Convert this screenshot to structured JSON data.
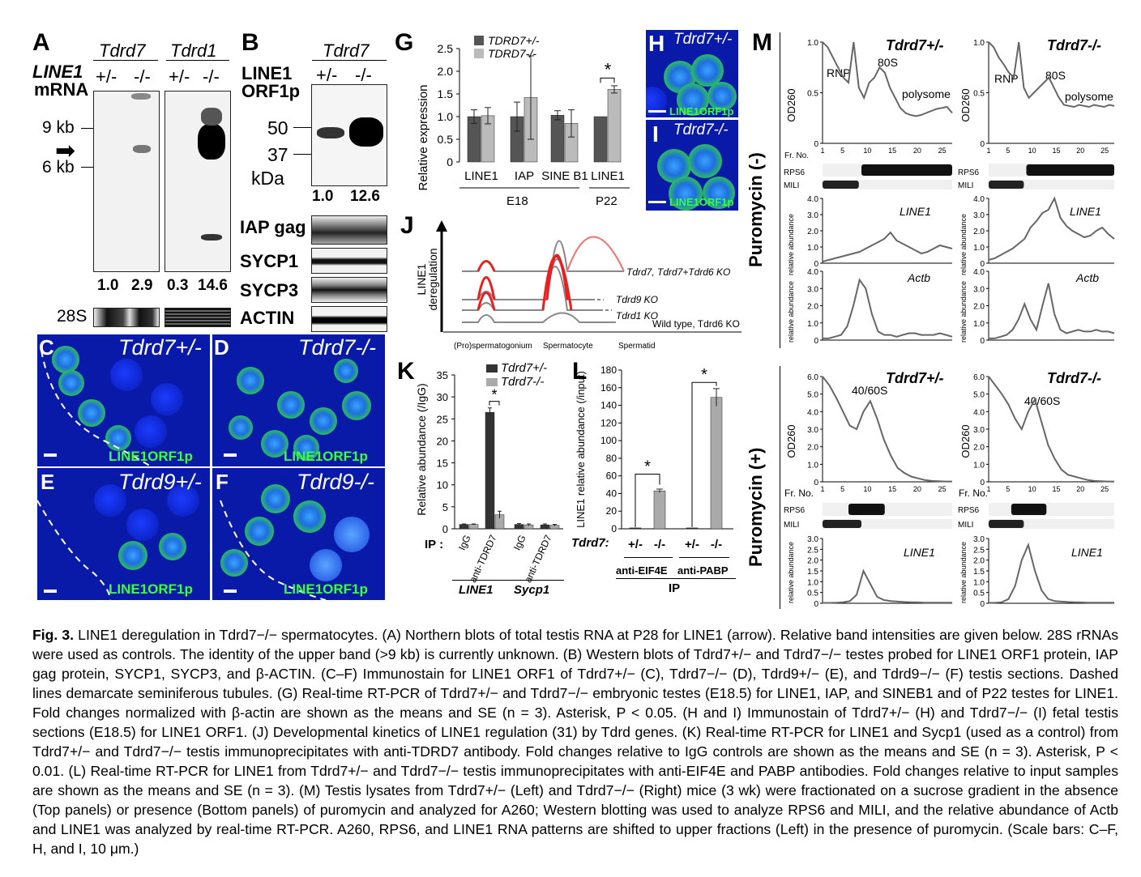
{
  "panelA": {
    "letter": "A",
    "gene_left": "Tdrd7",
    "gene_right": "Tdrd1",
    "row_label_1": "LINE1",
    "row_label_2": "mRNA",
    "geno": [
      "+/-",
      "-/-",
      "+/-",
      "-/-"
    ],
    "marker_9": "9 kb",
    "marker_6": "6 kb",
    "intensities": [
      "1.0",
      "2.9",
      "0.3",
      "14.6"
    ],
    "control": "28S"
  },
  "panelB": {
    "letter": "B",
    "gene": "Tdrd7",
    "row_label_1": "LINE1",
    "row_label_2": "ORF1p",
    "geno": [
      "+/-",
      "-/-"
    ],
    "mw_50": "50",
    "mw_37": "37",
    "kda": "kDa",
    "intensities": [
      "1.0",
      "12.6"
    ],
    "blots": [
      "IAP gag",
      "SYCP1",
      "SYCP3",
      "ACTIN"
    ]
  },
  "panelG": {
    "letter": "G",
    "legend": [
      "TDRD7+/-",
      "TDRD7-/-"
    ],
    "ylabel": "Relative expression",
    "group_e18": "E18",
    "group_p22": "P22",
    "sig": "*"
  },
  "panelH": {
    "letter": "H",
    "label": "Tdrd7+/-",
    "stain": "LINE1ORF1p"
  },
  "panelI": {
    "letter": "I",
    "label": "Tdrd7-/-",
    "stain": "LINE1ORF1p"
  },
  "panelJ": {
    "letter": "J",
    "ylabel_1": "LINE1",
    "ylabel_2": "deregulation",
    "curve_labels": [
      "Tdrd7, Tdrd7+Tdrd6 KO",
      "Tdrd9 KO",
      "Tdrd1 KO",
      "Wild type, Tdrd6 KO"
    ],
    "stages": [
      "(Pro)spermatogonium",
      "Spermatocyte",
      "Spermatid"
    ]
  },
  "panelC": {
    "letter": "C",
    "label": "Tdrd7+/-",
    "stain": "LINE1ORF1p"
  },
  "panelD": {
    "letter": "D",
    "label": "Tdrd7-/-",
    "stain": "LINE1ORF1p"
  },
  "panelE": {
    "letter": "E",
    "label": "Tdrd9+/-",
    "stain": "LINE1ORF1p"
  },
  "panelF": {
    "letter": "F",
    "label": "Tdrd9-/-",
    "stain": "LINE1ORF1p"
  },
  "panelK": {
    "letter": "K",
    "legend": [
      "Tdrd7+/-",
      "Tdrd7-/-"
    ],
    "ylabel": "Relative abundance (/IgG)",
    "ip_label": "IP :",
    "genes": [
      "LINE1",
      "Sycp1"
    ],
    "sig": "*"
  },
  "panelL": {
    "letter": "L",
    "ylabel": "LINE1 relative abundance (/input)",
    "geno_label": "Tdrd7:",
    "ab_1": "anti-EIF4E",
    "ab_2": "anti-PABP",
    "ip": "IP",
    "sig": "*"
  },
  "panelM": {
    "letter": "M",
    "cond_minus": "Puromycin (-)",
    "cond_plus": "Puromycin (+)",
    "het": "Tdrd7+/-",
    "ko": "Tdrd7-/-",
    "od": "OD260",
    "fr": "Fr. No.",
    "rnp": "RNP",
    "s80": "80S",
    "polysome": "polysome",
    "s4060": "40/60S",
    "rps6": "RPS6",
    "mili": "MILI",
    "line1": "LINE1",
    "actb": "Actb",
    "relab": "relative abundance"
  },
  "chart_data": [
    {
      "panel": "G",
      "type": "bar",
      "ylabel": "Relative expression",
      "ylim": [
        0,
        2.5
      ],
      "yticks": [
        "0",
        "0.5",
        "1.0",
        "1.5",
        "2.0",
        "2.5"
      ],
      "categories": [
        "LINE1",
        "IAP",
        "SINE B1",
        "LINE1"
      ],
      "groups": [
        "E18",
        "E18",
        "E18",
        "P22"
      ],
      "series": [
        {
          "name": "TDRD7+/-",
          "values": [
            1.0,
            1.0,
            1.03,
            1.0
          ],
          "errors": [
            0.15,
            0.32,
            0.1,
            0.0
          ],
          "color": "#555555"
        },
        {
          "name": "TDRD7-/-",
          "values": [
            1.02,
            1.42,
            0.85,
            1.6
          ],
          "errors": [
            0.18,
            0.92,
            0.3,
            0.08
          ],
          "color": "#bbbbbb"
        }
      ]
    },
    {
      "panel": "K",
      "type": "bar",
      "ylabel": "Relative abundance (/IgG)",
      "ylim": [
        0,
        35
      ],
      "yticks": [
        "0",
        "5",
        "10",
        "15",
        "20",
        "25",
        "30",
        "35"
      ],
      "categories": [
        "IgG",
        "anti-TDRD7",
        "IgG",
        "anti-TDRD7"
      ],
      "groups": [
        "LINE1",
        "LINE1",
        "Sycp1",
        "Sycp1"
      ],
      "series": [
        {
          "name": "Tdrd7+/-",
          "values": [
            1.0,
            26.5,
            1.0,
            0.9
          ],
          "errors": [
            0.1,
            1.0,
            0.2,
            0.2
          ],
          "color": "#333333"
        },
        {
          "name": "Tdrd7-/-",
          "values": [
            1.0,
            3.2,
            0.9,
            0.8
          ],
          "errors": [
            0.1,
            0.8,
            0.2,
            0.2
          ],
          "color": "#aaaaaa"
        }
      ]
    },
    {
      "panel": "L",
      "type": "bar",
      "ylabel": "LINE1 relative abundance (/input)",
      "ylim": [
        0,
        180
      ],
      "yticks": [
        "0",
        "20",
        "40",
        "60",
        "80",
        "100",
        "120",
        "140",
        "160",
        "180"
      ],
      "categories": [
        "+/-",
        "-/-",
        "+/-",
        "-/-"
      ],
      "groups": [
        "anti-EIF4E",
        "anti-EIF4E",
        "anti-PABP",
        "anti-PABP"
      ],
      "values": [
        1.0,
        43,
        1.0,
        149
      ],
      "errors": [
        0,
        2,
        0,
        10
      ]
    },
    {
      "panel": "M-top",
      "type": "line",
      "fractions_x": [
        "1",
        "5",
        "10",
        "15",
        "20",
        "25"
      ],
      "od_yticks": [
        "0",
        "0.5",
        "1.0"
      ],
      "line1_yticks": [
        "0",
        "1.0",
        "2.0",
        "3.0",
        "4.0"
      ],
      "actb_yticks": [
        "0",
        "1.0",
        "2.0",
        "3.0",
        "4.0"
      ],
      "series": [
        {
          "name": "Tdrd7+/- OD260",
          "values": [
            1.0,
            0.95,
            0.85,
            0.75,
            0.65,
            0.6,
            1.0,
            0.55,
            0.45,
            0.6,
            0.65,
            0.75,
            0.7,
            0.55,
            0.45,
            0.35,
            0.3,
            0.28,
            0.27,
            0.28,
            0.3,
            0.32,
            0.34,
            0.35,
            0.36,
            0.3
          ]
        },
        {
          "name": "Tdrd7-/- OD260",
          "values": [
            1.0,
            0.95,
            0.85,
            0.78,
            0.7,
            0.65,
            1.0,
            0.55,
            0.45,
            0.5,
            0.55,
            0.6,
            0.65,
            0.55,
            0.45,
            0.38,
            0.37,
            0.36,
            0.38,
            0.37,
            0.36,
            0.38,
            0.37,
            0.36,
            0.38,
            0.37
          ]
        },
        {
          "name": "Tdrd7+/- LINE1",
          "values": [
            0.1,
            0.2,
            0.3,
            0.4,
            0.5,
            0.6,
            0.7,
            0.9,
            1.1,
            1.3,
            1.5,
            1.9,
            1.4,
            1.2,
            1.0,
            0.8,
            0.6,
            0.7,
            0.9,
            1.1,
            1.0,
            0.9
          ]
        },
        {
          "name": "Tdrd7-/- LINE1",
          "values": [
            0.2,
            0.3,
            0.5,
            0.7,
            0.9,
            1.2,
            1.5,
            2.2,
            2.6,
            3.1,
            3.3,
            4.0,
            2.8,
            2.3,
            2.0,
            1.8,
            1.6,
            1.7,
            2.0,
            2.2,
            1.8,
            1.5
          ]
        },
        {
          "name": "Tdrd7+/- Actb",
          "values": [
            0.1,
            0.1,
            0.2,
            0.3,
            0.8,
            2.0,
            3.5,
            3.0,
            1.5,
            0.5,
            0.3,
            0.3,
            0.2,
            0.3,
            0.4,
            0.4,
            0.3,
            0.3,
            0.3,
            0.4,
            0.3,
            0.2
          ]
        },
        {
          "name": "Tdrd7-/- Actb",
          "values": [
            0.1,
            0.1,
            0.2,
            0.3,
            0.6,
            1.2,
            2.1,
            1.2,
            0.6,
            2.0,
            3.3,
            1.5,
            0.6,
            0.4,
            0.5,
            0.6,
            0.5,
            0.5,
            0.6,
            0.5,
            0.5,
            0.4
          ]
        }
      ]
    },
    {
      "panel": "M-bottom",
      "type": "line",
      "fractions_x": [
        "1",
        "5",
        "10",
        "15",
        "20",
        "25"
      ],
      "od_yticks": [
        "0",
        "1.0",
        "2.0",
        "3.0",
        "4.0",
        "5.0",
        "6.0"
      ],
      "line1_yticks_left": [
        "0",
        "0.5",
        "1.0",
        "1.5",
        "2.0",
        "2.5",
        "3.0"
      ],
      "line1_yticks_right": [
        "0",
        "0.5",
        "1.0",
        "1.5",
        "2.0",
        "2.5",
        "3.0"
      ],
      "series": [
        {
          "name": "Tdrd7+/- OD260",
          "values": [
            6.0,
            5.5,
            4.8,
            4.0,
            3.2,
            3.0,
            4.0,
            4.6,
            3.6,
            2.4,
            1.5,
            0.8,
            0.5,
            0.3,
            0.2,
            0.1,
            0.05,
            0.03,
            0.02,
            0.02
          ]
        },
        {
          "name": "Tdrd7-/- OD260",
          "values": [
            6.0,
            5.5,
            5.0,
            4.4,
            3.6,
            3.0,
            4.0,
            4.7,
            3.4,
            2.1,
            1.3,
            0.7,
            0.4,
            0.3,
            0.2,
            0.1,
            0.05,
            0.03,
            0.02,
            0.02
          ]
        },
        {
          "name": "Tdrd7+/- LINE1",
          "values": [
            0.02,
            0.02,
            0.03,
            0.05,
            0.1,
            0.4,
            1.5,
            0.9,
            0.3,
            0.15,
            0.1,
            0.08,
            0.06,
            0.05,
            0.04,
            0.03,
            0.03,
            0.03,
            0.03,
            0.03
          ]
        },
        {
          "name": "Tdrd7-/- LINE1",
          "values": [
            0.02,
            0.03,
            0.05,
            0.2,
            0.8,
            2.0,
            2.7,
            1.5,
            0.6,
            0.2,
            0.1,
            0.08,
            0.06,
            0.05,
            0.04,
            0.03,
            0.03,
            0.03,
            0.03,
            0.03
          ]
        }
      ]
    }
  ],
  "caption": {
    "fig": "Fig. 3.",
    "text": "LINE1 deregulation in Tdrd7−/− spermatocytes. (A) Northern blots of total testis RNA at P28 for LINE1 (arrow). Relative band intensities are given below. 28S rRNAs were used as controls. The identity of the upper band (>9 kb) is currently unknown. (B) Western blots of Tdrd7+/− and Tdrd7−/− testes probed for LINE1 ORF1 protein, IAP gag protein, SYCP1, SYCP3, and β-ACTIN. (C–F) Immunostain for LINE1 ORF1 of Tdrd7+/− (C), Tdrd7−/− (D), Tdrd9+/− (E), and Tdrd9−/− (F) testis sections. Dashed lines demarcate seminiferous tubules. (G) Real-time RT-PCR of Tdrd7+/− and Tdrd7−/− embryonic testes (E18.5) for LINE1, IAP, and SINEB1 and of P22 testes for LINE1. Fold changes normalized with β-actin are shown as the means and SE (n = 3). Asterisk, P < 0.05. (H and I) Immunostain of Tdrd7+/− (H) and Tdrd7−/− (I) fetal testis sections (E18.5) for LINE1 ORF1. (J) Developmental kinetics of LINE1 regulation (31) by Tdrd genes. (K) Real-time RT-PCR for LINE1 and Sycp1 (used as a control) from Tdrd7+/− and Tdrd7−/− testis immunoprecipitates with anti-TDRD7 antibody. Fold changes relative to IgG controls are shown as the means and SE (n = 3). Asterisk, P < 0.01. (L) Real-time RT-PCR for LINE1 from Tdrd7+/− and Tdrd7−/− testis immunoprecipitates with anti-EIF4E and PABP antibodies. Fold changes relative to input samples are shown as the means and SE (n = 3). (M) Testis lysates from Tdrd7+/− (Left) and Tdrd7−/− (Right) mice (3 wk) were fractionated on a sucrose gradient in the absence (Top panels) or presence (Bottom panels) of puromycin and analyzed for A260; Western blotting was used to analyze RPS6 and MILI, and the relative abundance of Actb and LINE1 was analyzed by real-time RT-PCR. A260, RPS6, and LINE1 RNA patterns are shifted to upper fractions (Left) in the presence of puromycin. (Scale bars: C–F, H, and I, 10 μm.)"
  }
}
